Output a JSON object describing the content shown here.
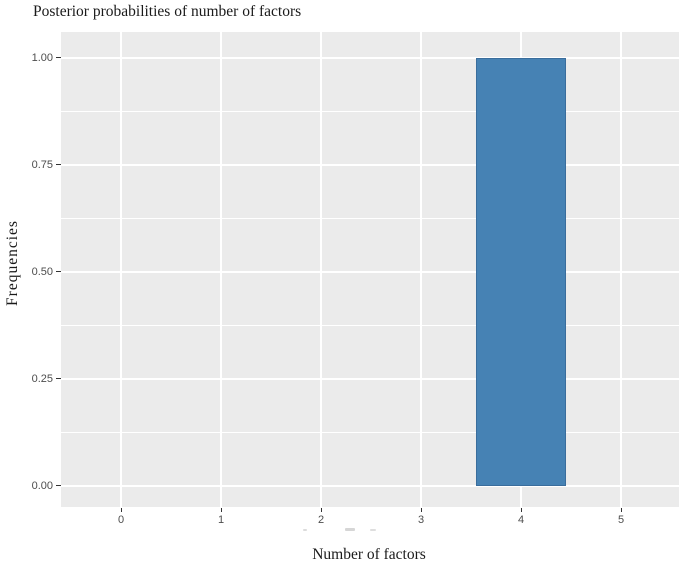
{
  "chart_data": {
    "type": "bar",
    "title": "Posterior probabilities of number of factors",
    "xlabel": "Number of factors",
    "ylabel": "Frequencies",
    "x": [
      4
    ],
    "values": [
      1.0
    ],
    "bar_width": 0.9,
    "xlim": [
      -0.6,
      5.58
    ],
    "ylim": [
      -0.05,
      1.06
    ],
    "x_ticks": [
      0,
      1,
      2,
      3,
      4,
      5
    ],
    "x_tick_labels": [
      "0",
      "1",
      "2",
      "3",
      "4",
      "5"
    ],
    "y_ticks": [
      0,
      0.25,
      0.5,
      0.75,
      1.0
    ],
    "y_tick_labels": [
      "0.00",
      "0.25",
      "0.50",
      "0.75",
      "1.00"
    ],
    "y_minor_ticks": [
      0.125,
      0.375,
      0.625,
      0.875
    ],
    "grid": true,
    "legend": "none",
    "colors": {
      "bar_fill": "#4682B4",
      "bar_border": "#3A6D9C",
      "panel_bg": "#EBEBEB",
      "grid": "#FFFFFF",
      "tick_mark": "#333333",
      "tick_label": "#4D4D4D",
      "title_text": "#1A1A1A"
    }
  }
}
